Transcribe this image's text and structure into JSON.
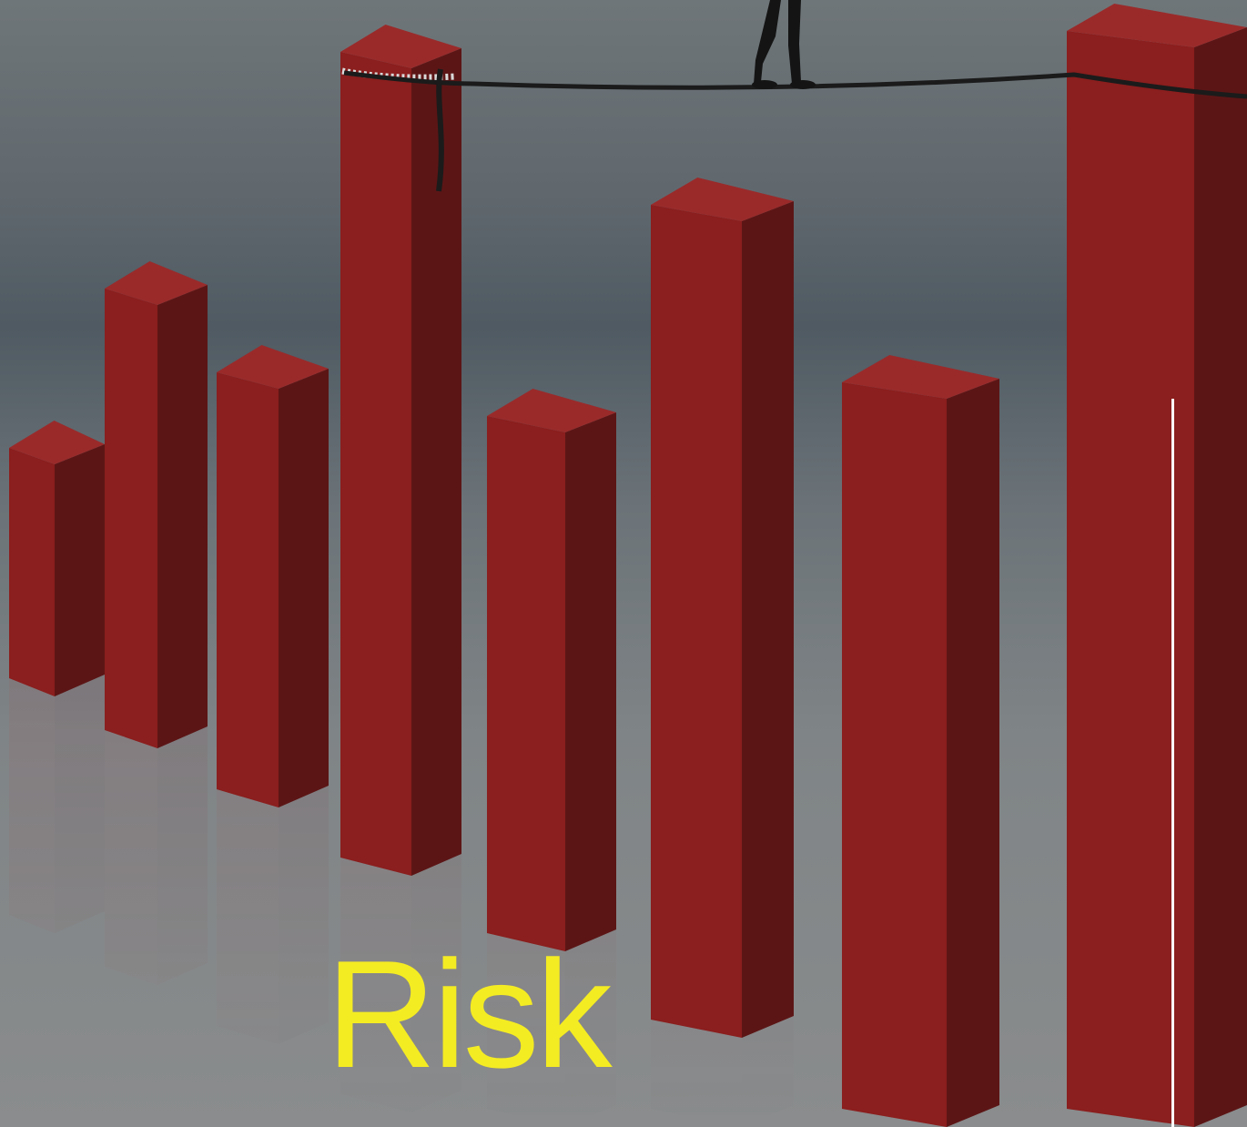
{
  "hero": {
    "title": "Risk",
    "image_icon": "tightrope-bar-chart-image"
  },
  "colors": {
    "title": "#f4ec23",
    "bar_front": "#8b1e1e",
    "bar_side": "#5c1515",
    "bar_top": "#9a2a2a",
    "background": "#6b7378"
  }
}
